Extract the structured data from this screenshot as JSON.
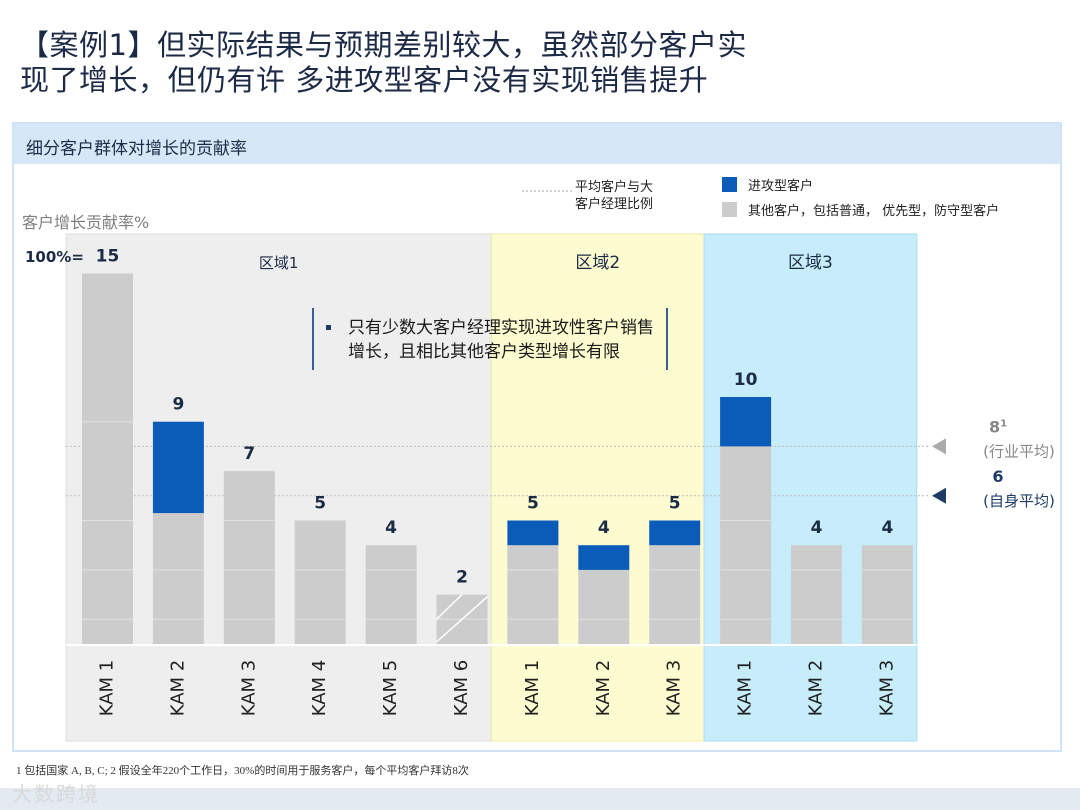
{
  "title": {
    "line1": "【案例1】但实际结果与预期差别较大，虽然部分客户实",
    "line2": "现了增长，但仍有许 多进攻型客户没有实现销售提升"
  },
  "panel_title": "细分客户群体对增长的贡献率",
  "callout_text": "只有少数大客户经理实现进攻性客户销售增长，且相比其他客户类型增长有限",
  "footnote": "1 包括国家 A, B, C; 2 假设全年220个工作日，30%的时间用于服务客户，每个平均客户拜访8次",
  "watermark": "大数跨境",
  "colors": {
    "aggressive": "#0b5cb8",
    "other": "#cccccc",
    "region1_bg": "#eeeeee",
    "region2_bg": "#fdfbd0",
    "region3_bg": "#c7ecfa",
    "title": "#1c2a46"
  },
  "chart_data": {
    "type": "bar",
    "stacked": true,
    "ylabel": "客户增长贡献率%",
    "ytop_label": "100%=",
    "legend": {
      "line_label": "平均客户与大客户经理比例",
      "items": [
        {
          "name": "进攻型客户",
          "color": "#0b5cb8"
        },
        {
          "name": "其他客户，包括普通， 优先型，防守型客户",
          "color": "#cccccc"
        }
      ]
    },
    "regions": [
      {
        "name": "区域1",
        "categories": [
          "KAM 1",
          "KAM 2",
          "KAM 3",
          "KAM 4",
          "KAM 5",
          "KAM 6"
        ]
      },
      {
        "name": "区域2",
        "categories": [
          "KAM 1",
          "KAM 2",
          "KAM 3"
        ]
      },
      {
        "name": "区域3",
        "categories": [
          "KAM 1",
          "KAM 2",
          "KAM 3"
        ]
      }
    ],
    "bars": [
      {
        "region": 0,
        "category": "KAM 1",
        "total": 15,
        "aggressive": 0,
        "other": 15
      },
      {
        "region": 0,
        "category": "KAM 2",
        "total": 9,
        "aggressive": 3.7,
        "other": 5.3
      },
      {
        "region": 0,
        "category": "KAM 3",
        "total": 7,
        "aggressive": 0,
        "other": 7
      },
      {
        "region": 0,
        "category": "KAM 4",
        "total": 5,
        "aggressive": 0,
        "other": 5
      },
      {
        "region": 0,
        "category": "KAM 5",
        "total": 4,
        "aggressive": 0,
        "other": 4
      },
      {
        "region": 0,
        "category": "KAM 6",
        "total": 2,
        "aggressive": 0,
        "other": 2
      },
      {
        "region": 1,
        "category": "KAM 1",
        "total": 5,
        "aggressive": 1,
        "other": 4
      },
      {
        "region": 1,
        "category": "KAM 2",
        "total": 4,
        "aggressive": 1,
        "other": 3
      },
      {
        "region": 1,
        "category": "KAM 3",
        "total": 5,
        "aggressive": 1,
        "other": 4
      },
      {
        "region": 2,
        "category": "KAM 1",
        "total": 10,
        "aggressive": 2,
        "other": 8
      },
      {
        "region": 2,
        "category": "KAM 2",
        "total": 4,
        "aggressive": 0,
        "other": 4
      },
      {
        "region": 2,
        "category": "KAM 3",
        "total": 4,
        "aggressive": 0,
        "other": 4
      }
    ],
    "reference_lines": [
      {
        "value": 8,
        "label": "8",
        "sup": "1",
        "sublabel": "(行业平均)",
        "color": "#aaaaaa"
      },
      {
        "value": 6,
        "label": "6",
        "sup": "",
        "sublabel": "(自身平均)",
        "color": "#1f3c66"
      }
    ],
    "ylim": [
      0,
      15
    ]
  }
}
